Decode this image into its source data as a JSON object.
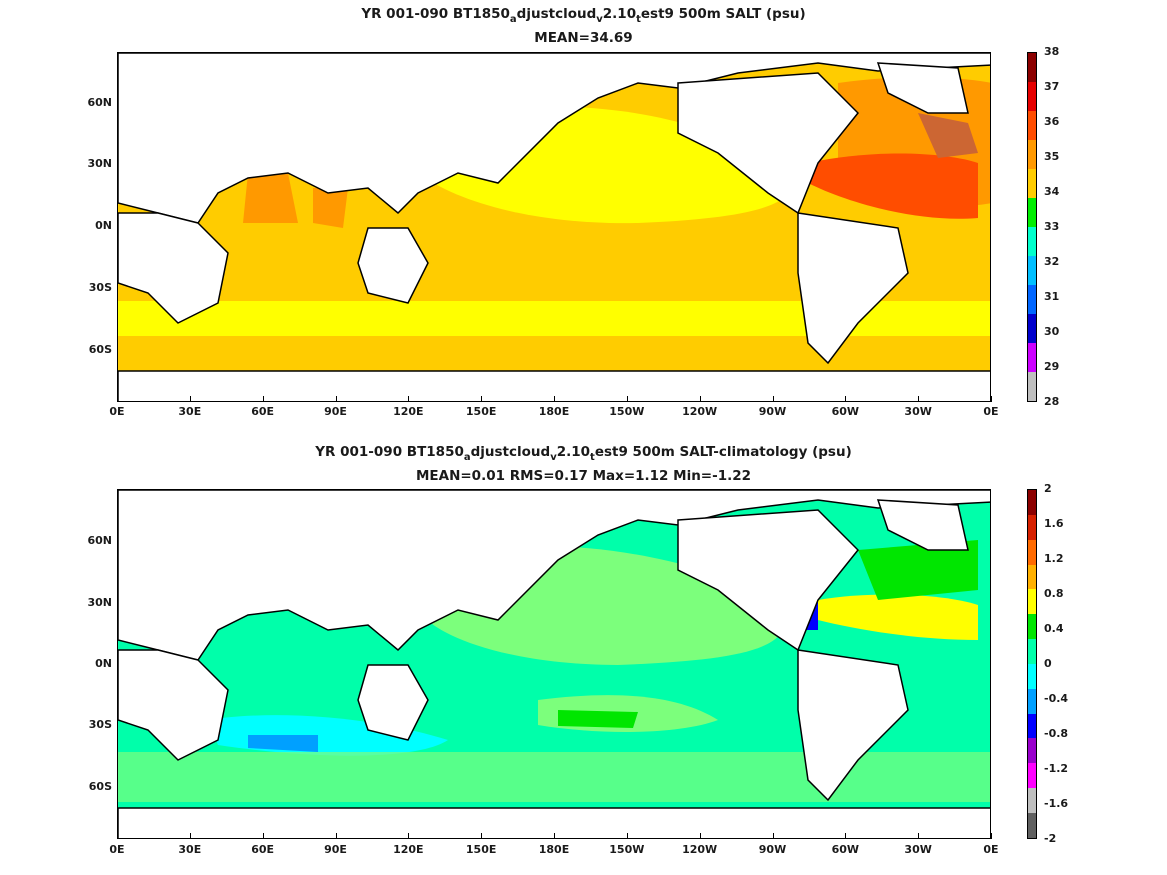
{
  "chart_data": [
    {
      "type": "heatmap",
      "title_parts": [
        "YR 001-090 BT1850",
        "a",
        "djustcloud",
        "v",
        "2.10",
        "t",
        "est9 500m SALT (psu)"
      ],
      "subtitle": "MEAN=34.69",
      "x_ticks": [
        "0E",
        "30E",
        "60E",
        "90E",
        "120E",
        "150E",
        "180E",
        "150W",
        "120W",
        "90W",
        "60W",
        "30W",
        "0E"
      ],
      "y_ticks": [
        "60N",
        "30N",
        "0N",
        "30S",
        "60S"
      ],
      "colorbar_ticks": [
        "38",
        "37",
        "36",
        "35",
        "34",
        "33",
        "32",
        "31",
        "30",
        "29",
        "28"
      ],
      "colorbar_colors": [
        "#8b0000",
        "#e60000",
        "#ff4d00",
        "#ff9900",
        "#ffcc00",
        "#00ee00",
        "#00ffcc",
        "#00bfff",
        "#0066ff",
        "#0000cc",
        "#cc00ff",
        "#bfbfbf"
      ],
      "xlim_deg_east": [
        0,
        360
      ],
      "ylim_deg": [
        -78,
        85
      ]
    },
    {
      "type": "heatmap",
      "title_parts": [
        "YR 001-090 BT1850",
        "a",
        "djustcloud",
        "v",
        "2.10",
        "t",
        "est9 500m SALT-climatology (psu)"
      ],
      "subtitle": "MEAN=0.01    RMS=0.17    Max=1.12    Min=-1.22",
      "x_ticks": [
        "0E",
        "30E",
        "60E",
        "90E",
        "120E",
        "150E",
        "180E",
        "150W",
        "120W",
        "90W",
        "60W",
        "30W",
        "0E"
      ],
      "y_ticks": [
        "60N",
        "30N",
        "0N",
        "30S",
        "60S"
      ],
      "colorbar_ticks": [
        "2",
        "1.6",
        "1.2",
        "0.8",
        "0.4",
        "0",
        "-0.4",
        "-0.8",
        "-1.2",
        "-1.6",
        "-2"
      ],
      "colorbar_colors": [
        "#8b0000",
        "#d62000",
        "#ff6a00",
        "#ffb000",
        "#ffff00",
        "#00e600",
        "#00ffaa",
        "#00ffff",
        "#00a0ff",
        "#0000ff",
        "#9900cc",
        "#ff00ff",
        "#bfbfbf",
        "#606060"
      ],
      "xlim_deg_east": [
        0,
        360
      ],
      "ylim_deg": [
        -78,
        85
      ]
    }
  ]
}
